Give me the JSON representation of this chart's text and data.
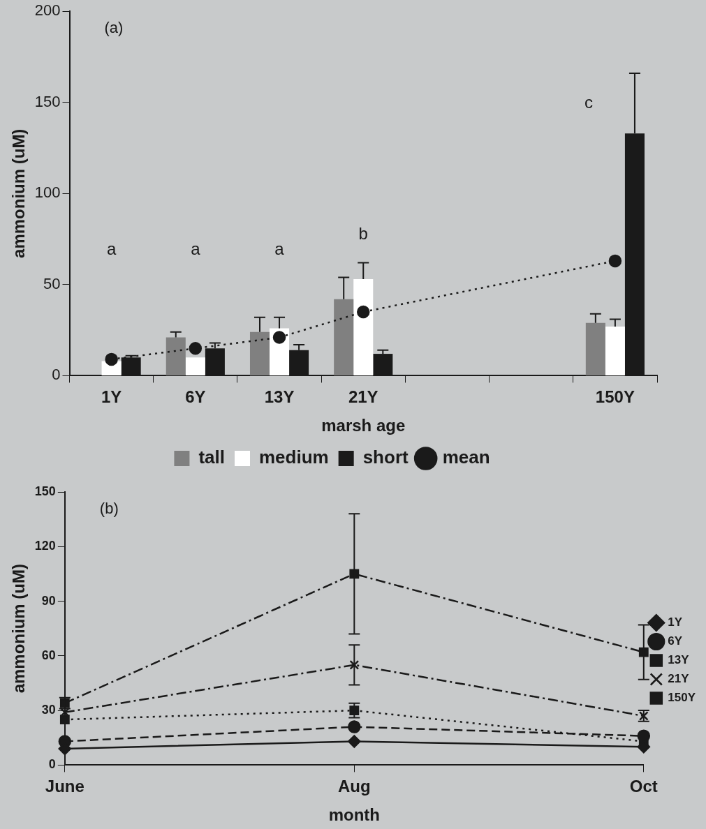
{
  "chart_data": [
    {
      "type": "bar",
      "xlabel": "marsh age",
      "ylabel": "ammonium (uM)",
      "categories": [
        "1Y",
        "6Y",
        "13Y",
        "21Y",
        null,
        null,
        "150Y"
      ],
      "series": [
        {
          "name": "tall",
          "color": "#808080",
          "values": [
            null,
            21,
            24,
            42,
            null,
            null,
            29
          ],
          "errors": [
            null,
            3,
            8,
            12,
            null,
            null,
            5
          ]
        },
        {
          "name": "medium",
          "color": "#ffffff",
          "values": [
            8,
            10,
            26,
            53,
            null,
            null,
            27
          ],
          "errors": [
            null,
            null,
            6,
            9,
            null,
            null,
            4
          ]
        },
        {
          "name": "short",
          "color": "#1a1a1a",
          "values": [
            10,
            15,
            14,
            12,
            null,
            null,
            133
          ],
          "errors": [
            1,
            3,
            3,
            2,
            null,
            null,
            33
          ]
        },
        {
          "name": "mean",
          "type": "line",
          "color": "#1a1a1a",
          "marker": "circle",
          "line_style": "dotted",
          "values": [
            9,
            15,
            21,
            35,
            null,
            null,
            63
          ]
        }
      ],
      "ylim": [
        0,
        200
      ],
      "yticks": [
        0,
        50,
        100,
        150,
        200
      ],
      "legend": "bottom",
      "annotations": [
        "(a)",
        "a",
        "a",
        "a",
        "b",
        "c"
      ]
    },
    {
      "type": "line",
      "xlabel": "month",
      "ylabel": "ammonium (uM)",
      "categories": [
        "June",
        "Aug",
        "Oct"
      ],
      "series": [
        {
          "name": "1Y",
          "color": "#1a1a1a",
          "marker": "diamond",
          "line_style": "solid",
          "values": [
            9,
            13,
            10
          ]
        },
        {
          "name": "6Y",
          "color": "#1a1a1a",
          "marker": "circle",
          "line_style": "dashed",
          "values": [
            13,
            21,
            16
          ]
        },
        {
          "name": "13Y",
          "color": "#1a1a1a",
          "marker": "square",
          "line_style": "dotted",
          "values": [
            25,
            30,
            13
          ],
          "errors": [
            null,
            4,
            null
          ]
        },
        {
          "name": "21Y",
          "color": "#1a1a1a",
          "marker": "cross",
          "line_style": "dashdot",
          "values": [
            29,
            55,
            27
          ],
          "errors": [
            null,
            11,
            3
          ]
        },
        {
          "name": "150Y",
          "color": "#1a1a1a",
          "marker": "square",
          "line_style": "dashdot",
          "values": [
            34,
            105,
            62
          ],
          "errors": [
            3,
            33,
            15
          ]
        }
      ],
      "ylim": [
        0,
        150
      ],
      "yticks": [
        0,
        30,
        60,
        90,
        120,
        150
      ],
      "legend": "right",
      "annotations": [
        "(b)"
      ]
    }
  ]
}
